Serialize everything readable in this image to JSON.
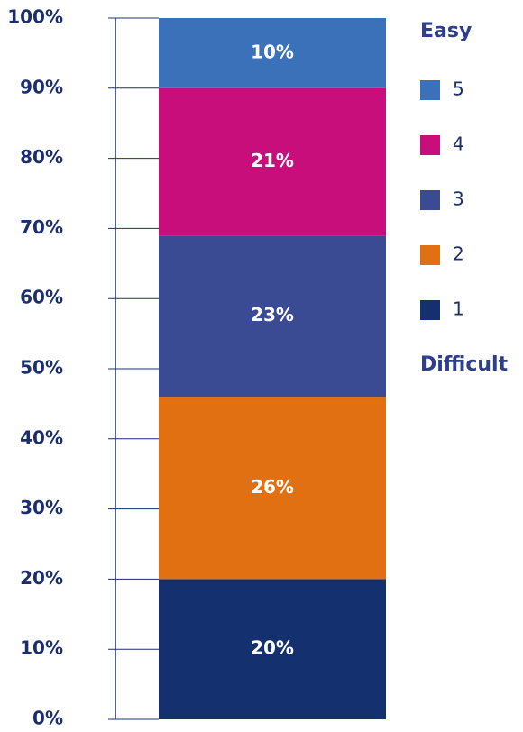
{
  "chart_data": {
    "type": "stacked_bar",
    "annotations": {
      "top": "Easy",
      "bottom": "Difficult"
    },
    "series": [
      {
        "name": "1",
        "color": "#15306f",
        "values": [
          20
        ],
        "value_labels": [
          "20%"
        ]
      },
      {
        "name": "2",
        "color": "#e07011",
        "values": [
          26
        ],
        "value_labels": [
          "26%"
        ]
      },
      {
        "name": "3",
        "color": "#3a4a93",
        "values": [
          23
        ],
        "value_labels": [
          "23%"
        ]
      },
      {
        "name": "4",
        "color": "#c80e7b",
        "values": [
          21
        ],
        "value_labels": [
          "21%"
        ]
      },
      {
        "name": "5",
        "color": "#3b71b8",
        "values": [
          10
        ],
        "value_labels": [
          "10%"
        ]
      }
    ],
    "ylim": [
      0,
      100
    ],
    "yticks": [
      {
        "value": 0,
        "label": "0%"
      },
      {
        "value": 10,
        "label": "10%"
      },
      {
        "value": 20,
        "label": "20%"
      },
      {
        "value": 30,
        "label": "30%"
      },
      {
        "value": 40,
        "label": "40%"
      },
      {
        "value": 50,
        "label": "50%"
      },
      {
        "value": 60,
        "label": "60%"
      },
      {
        "value": 70,
        "label": "70%"
      },
      {
        "value": 80,
        "label": "80%"
      },
      {
        "value": 90,
        "label": "90%"
      },
      {
        "value": 100,
        "label": "100%"
      }
    ],
    "legend": "right",
    "reverse_legend": true
  }
}
